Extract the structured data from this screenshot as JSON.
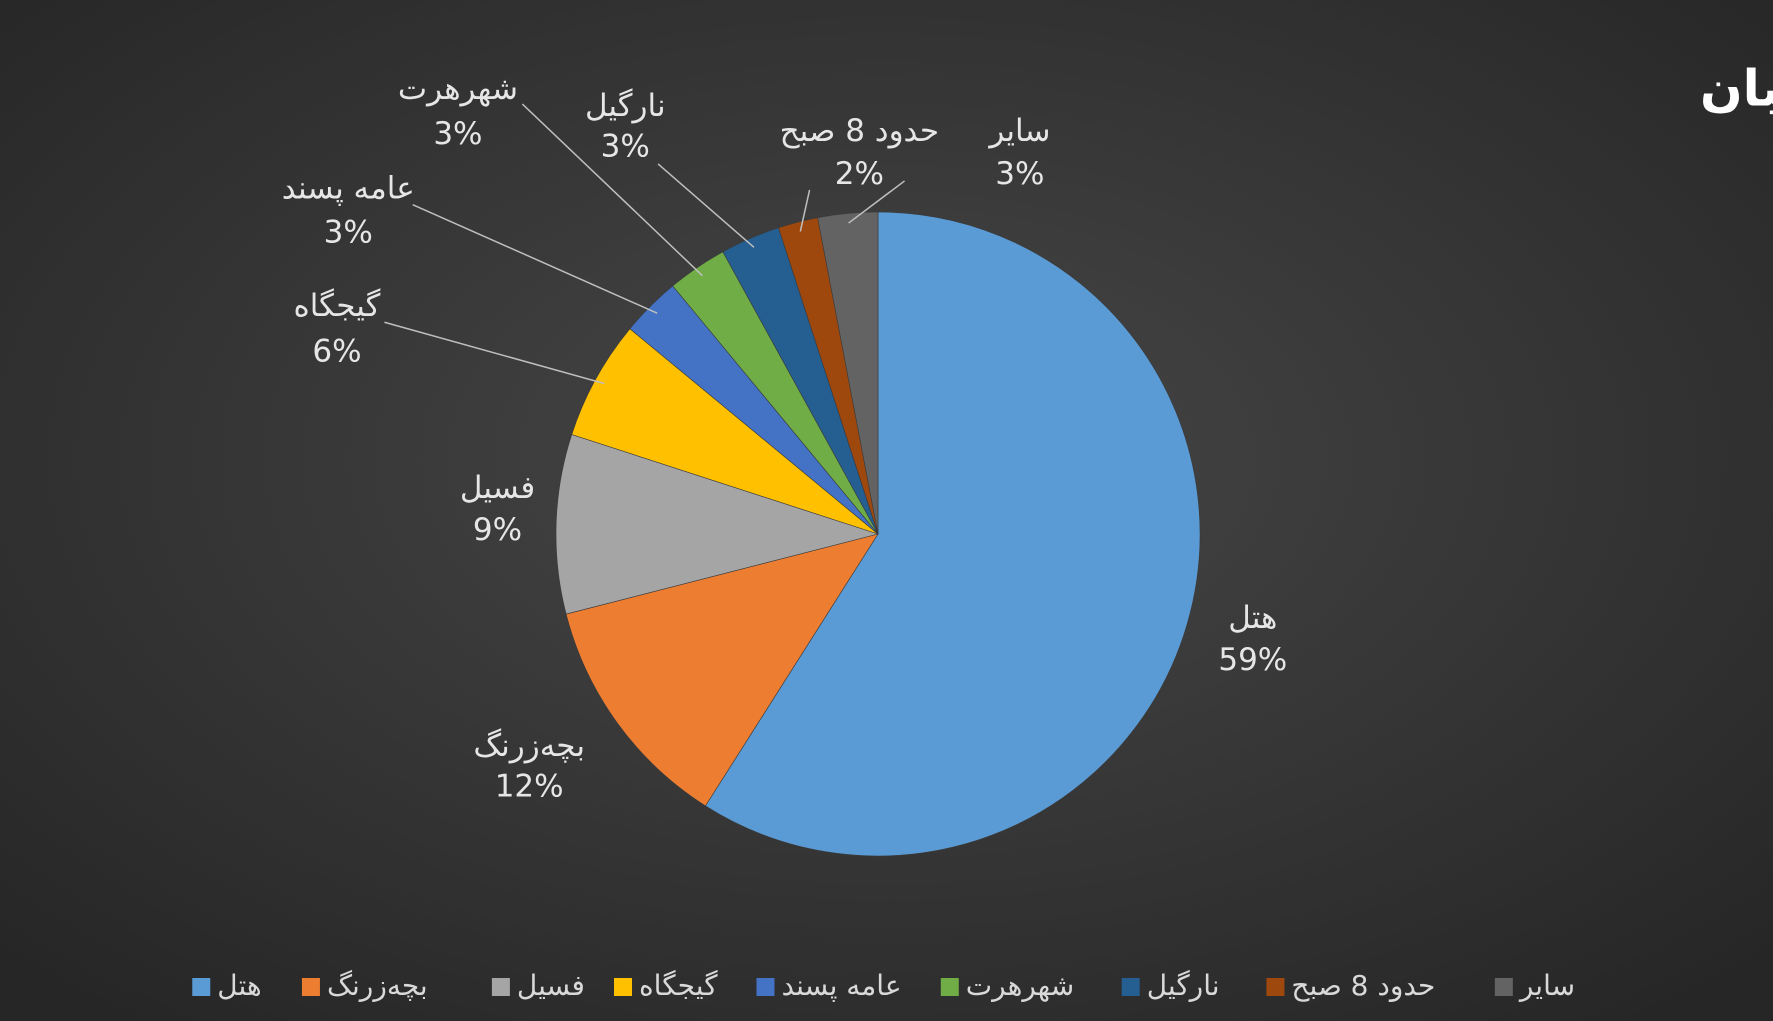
{
  "chart_data": {
    "type": "pie",
    "title": "سهم از کل مخاطبان",
    "categories": [
      "هتل",
      "بچه‌زرنگ",
      "فسیل",
      "گیجگاه",
      "عامه پسند",
      "شهرهرت",
      "نارگیل",
      "حدود 8 صبح",
      "سایر"
    ],
    "values": [
      59,
      12,
      9,
      6,
      3,
      3,
      3,
      2,
      3
    ],
    "value_labels": [
      "59%",
      "12%",
      "9%",
      "6%",
      "3%",
      "3%",
      "3%",
      "2%",
      "3%"
    ],
    "colors": [
      "#5b9bd5",
      "#ed7d31",
      "#a5a5a5",
      "#ffc000",
      "#4472c4",
      "#70ad47",
      "#255e91",
      "#9e480e",
      "#636363"
    ],
    "legend": "bottom"
  }
}
